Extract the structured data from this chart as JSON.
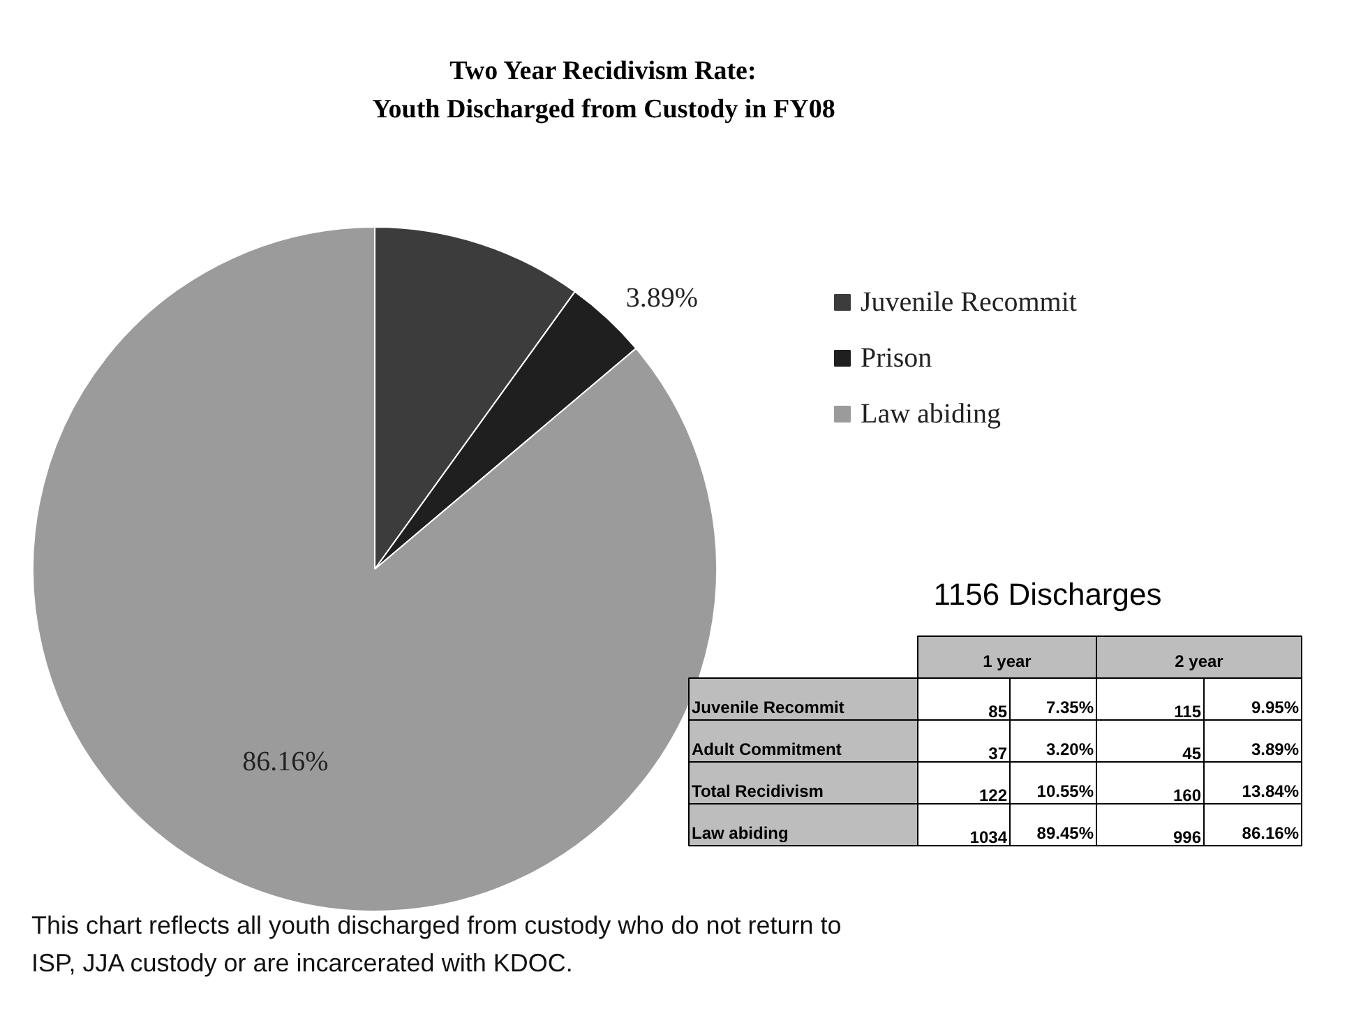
{
  "chart_data": [
    {
      "type": "pie",
      "title": "Two Year Recidivism Rate:\nYouth Discharged from Custody in FY08",
      "categories": [
        "Juvenile Recommit",
        "Prison",
        "Law abiding"
      ],
      "values": [
        9.95,
        3.89,
        86.16
      ],
      "colors": [
        "#3c3c3c",
        "#1f1f1f",
        "#9b9b9b"
      ],
      "value_labels": [
        null,
        "3.89%",
        "86.16%"
      ],
      "legend": "right",
      "annotations": [
        "This chart reflects all youth discharged from custody who do not return to ISP, JJA custody or are incarcerated with KDOC."
      ]
    },
    {
      "type": "other",
      "title": "1156 Discharges",
      "categories": [
        "1 year",
        "2 year"
      ],
      "y_categories": [
        "Juvenile Recommit",
        "Adult Commitment",
        "Total Recidivism",
        "Law abiding"
      ],
      "cell_labels": [
        [
          "85",
          "7.35%",
          "115",
          "9.95%"
        ],
        [
          "37",
          "3.20%",
          "45",
          "3.89%"
        ],
        [
          "122",
          "10.55%",
          "160",
          "13.84%"
        ],
        [
          "1034",
          "89.45%",
          "996",
          "86.16%"
        ]
      ]
    }
  ]
}
